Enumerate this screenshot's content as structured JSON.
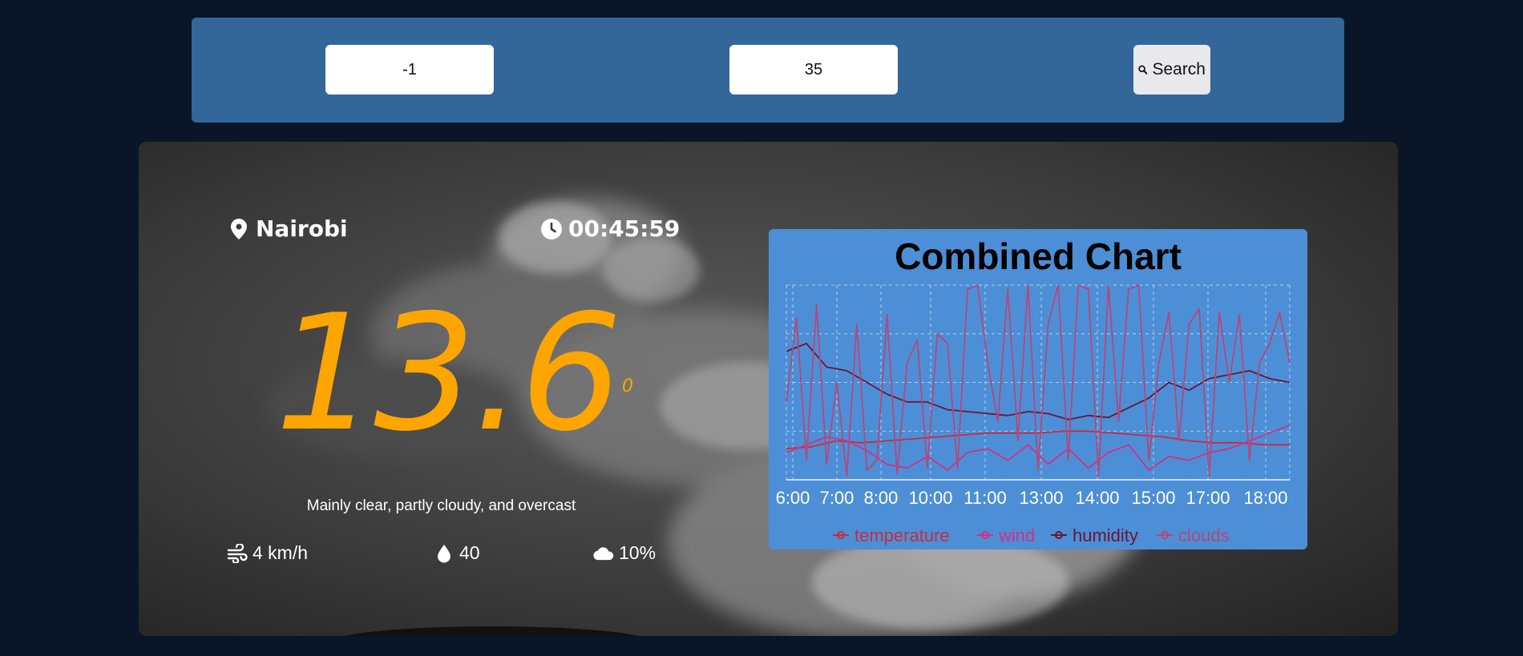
{
  "search": {
    "latitude_value": "-1",
    "longitude_value": "35",
    "button_label": "Search"
  },
  "weather": {
    "location": "Nairobi",
    "time": "00:45:59",
    "temperature": "13.6",
    "degree_mark": "0",
    "condition": "Mainly clear, partly cloudy, and overcast",
    "wind": "4 km/h",
    "humidity": "40",
    "clouds": "10%"
  },
  "colors": {
    "accent": "#ffa500",
    "search_bar": "#336699",
    "chart_bg": "#4d8fd6",
    "page_bg": "#0a1628"
  },
  "icons": {
    "location": "map-pin-icon",
    "time": "clock-icon",
    "search": "magnifier-icon",
    "wind": "wind-icon",
    "humidity": "droplet-icon",
    "clouds": "cloud-icon"
  },
  "chart_data": {
    "type": "line",
    "title": "Combined Chart",
    "x_tick_labels": [
      "6:00",
      "7:00",
      "8:00",
      "10:00",
      "11:00",
      "13:00",
      "14:00",
      "15:00",
      "17:00",
      "18:00"
    ],
    "grid": true,
    "legend_position": "bottom",
    "y_range": [
      0,
      100
    ],
    "x_range": [
      0,
      100
    ],
    "series": [
      {
        "name": "temperature",
        "color": "#c62d3f",
        "x": [
          0,
          5,
          10,
          15,
          20,
          25,
          30,
          35,
          40,
          45,
          50,
          55,
          60,
          65,
          70,
          75,
          80,
          85,
          90,
          95,
          100
        ],
        "y": [
          16,
          17,
          20,
          19,
          20,
          21,
          22,
          23,
          24,
          24,
          24,
          25,
          25,
          24,
          23,
          22,
          20,
          19,
          19,
          18,
          18
        ]
      },
      {
        "name": "wind",
        "color": "#d42f86",
        "x": [
          0,
          4,
          8,
          12,
          16,
          20,
          24,
          28,
          32,
          36,
          40,
          44,
          48,
          52,
          56,
          60,
          64,
          68,
          72,
          76,
          80,
          84,
          88,
          92,
          96,
          100
        ],
        "y": [
          14,
          18,
          22,
          20,
          15,
          8,
          6,
          12,
          5,
          14,
          16,
          10,
          18,
          8,
          16,
          6,
          14,
          18,
          5,
          12,
          10,
          14,
          16,
          20,
          24,
          28
        ]
      },
      {
        "name": "humidity",
        "color": "#6b1535",
        "x": [
          0,
          4,
          8,
          12,
          16,
          20,
          24,
          28,
          32,
          36,
          40,
          44,
          48,
          52,
          56,
          60,
          64,
          68,
          72,
          76,
          80,
          84,
          88,
          92,
          96,
          100
        ],
        "y": [
          66,
          70,
          58,
          56,
          50,
          44,
          40,
          40,
          36,
          35,
          34,
          33,
          35,
          34,
          31,
          33,
          32,
          37,
          42,
          50,
          46,
          52,
          54,
          56,
          52,
          50
        ]
      },
      {
        "name": "clouds",
        "color": "#b3487c",
        "x": [
          0,
          2,
          4,
          6,
          8,
          10,
          12,
          14,
          16,
          18,
          20,
          22,
          24,
          26,
          28,
          30,
          32,
          34,
          36,
          38,
          40,
          42,
          44,
          46,
          48,
          50,
          52,
          54,
          56,
          58,
          60,
          62,
          64,
          66,
          68,
          70,
          72,
          74,
          76,
          78,
          80,
          82,
          84,
          86,
          88,
          90,
          92,
          94,
          96,
          98,
          100
        ],
        "y": [
          40,
          83,
          10,
          90,
          8,
          50,
          2,
          80,
          5,
          10,
          85,
          3,
          60,
          72,
          6,
          75,
          70,
          6,
          98,
          100,
          60,
          30,
          98,
          20,
          100,
          5,
          80,
          100,
          10,
          100,
          98,
          2,
          100,
          30,
          98,
          100,
          10,
          60,
          86,
          20,
          80,
          88,
          2,
          86,
          50,
          85,
          10,
          60,
          70,
          86,
          60
        ]
      }
    ]
  }
}
